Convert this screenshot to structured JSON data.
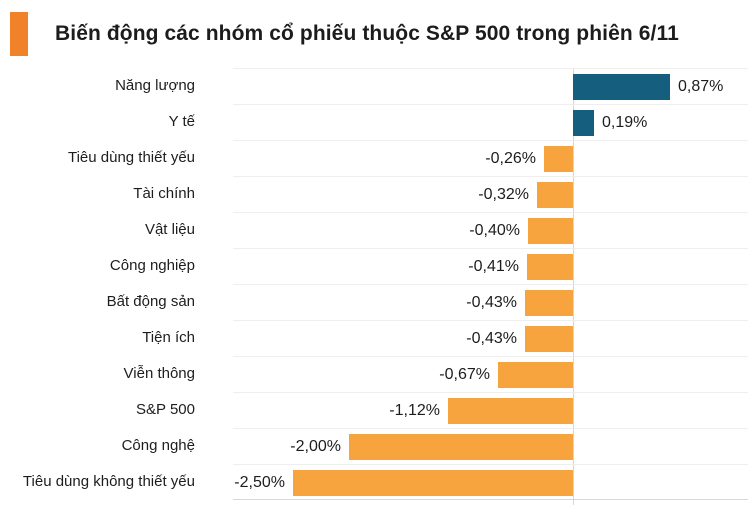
{
  "header": {
    "title": "Biến động các nhóm cổ phiếu thuộc S&P 500 trong phiên 6/11",
    "marker_color": "#F0832A"
  },
  "chart_data": {
    "type": "bar",
    "orientation": "horizontal",
    "title": "Biến động các nhóm cổ phiếu thuộc S&P 500 trong phiên 6/11",
    "categories": [
      "Năng lượng",
      "Y tế",
      "Tiêu dùng thiết yếu",
      "Tài chính",
      "Vật liệu",
      "Công nghiệp",
      "Bất động sản",
      "Tiện ích",
      "Viễn thông",
      "S&P 500",
      "Công nghệ",
      "Tiêu dùng không thiết yếu"
    ],
    "values": [
      0.87,
      0.19,
      -0.26,
      -0.32,
      -0.4,
      -0.41,
      -0.43,
      -0.43,
      -0.67,
      -1.12,
      -2.0,
      -2.5
    ],
    "value_labels": [
      "0,87%",
      "0,19%",
      "-0,26%",
      "-0,32%",
      "-0,40%",
      "-0,41%",
      "-0,43%",
      "-0,43%",
      "-0,67%",
      "-1,12%",
      "-2,00%",
      "-2,50%"
    ],
    "unit": "%",
    "xlim": [
      -3.0,
      1.55
    ],
    "positive_color": "#155E7E",
    "negative_color": "#F8A43E",
    "grid": "horizontal-light",
    "zero_line": true,
    "legend": "none"
  }
}
